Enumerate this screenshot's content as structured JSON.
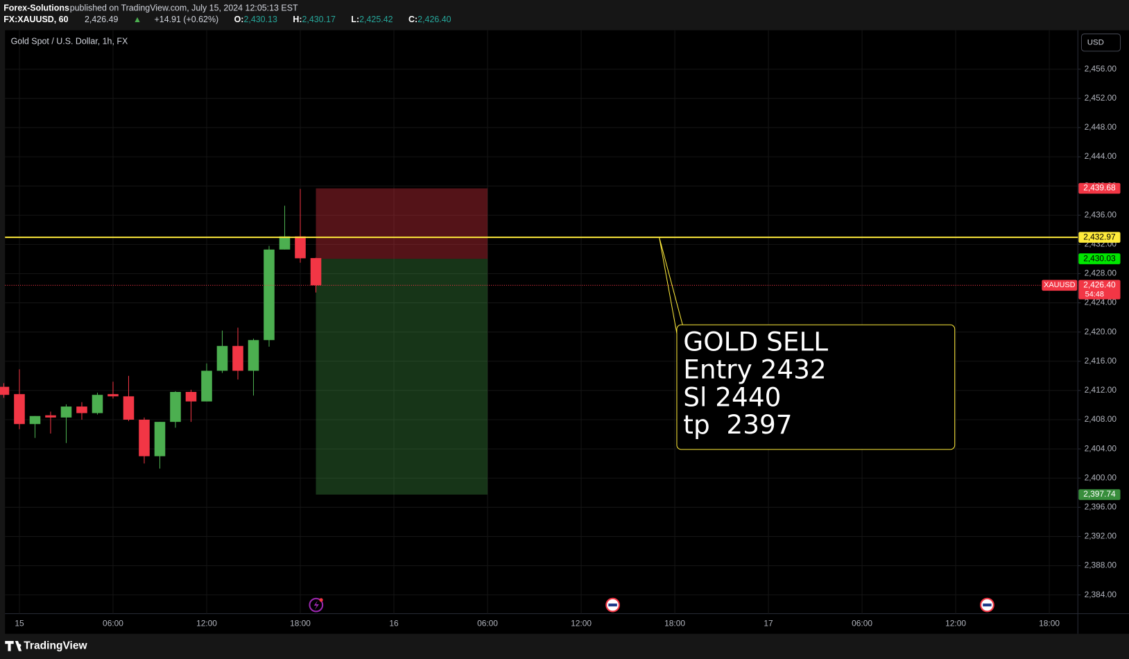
{
  "header": {
    "publisher": "Forex-Solutions",
    "published": "published on TradingView.com, July 15, 2024 12:05:13 EST",
    "symbol": "FX:XAUUSD, 60",
    "last": "2,426.49",
    "change": "+14.91 (+0.62%)",
    "o_label": "O:",
    "o": "2,430.13",
    "h_label": "H:",
    "h": "2,430.17",
    "l_label": "L:",
    "l": "2,425.42",
    "c_label": "C:",
    "c": "2,426.40"
  },
  "chart_data": {
    "type": "candlestick",
    "title": "Gold Spot / U.S. Dollar, 1h, FX",
    "currency": "USD",
    "x": [
      -1,
      0,
      1,
      2,
      3,
      4,
      5,
      6,
      7,
      8,
      9,
      10,
      11,
      12,
      13,
      14,
      15,
      16,
      17,
      18,
      19
    ],
    "open": [
      2412.5,
      2411.5,
      2407.4,
      2408.6,
      2408.3,
      2409.8,
      2408.9,
      2411.5,
      2411.2,
      2408.0,
      2403.0,
      2407.7,
      2411.8,
      2410.5,
      2414.7,
      2418.1,
      2414.7,
      2418.9,
      2431.3,
      2433.1,
      2430.13
    ],
    "high": [
      2413.0,
      2414.9,
      2408.5,
      2409.1,
      2410.1,
      2410.4,
      2411.7,
      2413.2,
      2414.0,
      2408.3,
      2407.7,
      2411.9,
      2412.1,
      2415.7,
      2420.2,
      2420.6,
      2419.1,
      2431.8,
      2437.3,
      2439.6,
      2430.17
    ],
    "low": [
      2411.0,
      2406.7,
      2405.5,
      2406.1,
      2404.8,
      2408.0,
      2408.7,
      2410.9,
      2407.8,
      2402.0,
      2401.3,
      2406.9,
      2407.7,
      2410.5,
      2414.4,
      2413.5,
      2411.3,
      2418.0,
      2431.3,
      2429.5,
      2425.42
    ],
    "close": [
      2411.4,
      2407.4,
      2408.5,
      2408.3,
      2409.8,
      2408.9,
      2411.4,
      2411.2,
      2408.0,
      2403.0,
      2407.7,
      2411.8,
      2410.5,
      2414.7,
      2418.1,
      2414.7,
      2418.9,
      2431.3,
      2433.1,
      2430.1,
      2426.4
    ],
    "up_color": "#4caf50",
    "down_color": "#f23645",
    "xlim": [
      -0.92,
      67.83
    ],
    "ylim": [
      2381.44,
      2461.33
    ],
    "xticks": [
      {
        "value": 0,
        "label": "15"
      },
      {
        "value": 6,
        "label": "06:00"
      },
      {
        "value": 12,
        "label": "12:00"
      },
      {
        "value": 18,
        "label": "18:00"
      },
      {
        "value": 24,
        "label": "16"
      },
      {
        "value": 30,
        "label": "06:00"
      },
      {
        "value": 36,
        "label": "12:00"
      },
      {
        "value": 42,
        "label": "18:00"
      },
      {
        "value": 48,
        "label": "17"
      },
      {
        "value": 54,
        "label": "06:00"
      },
      {
        "value": 60,
        "label": "12:00"
      },
      {
        "value": 66,
        "label": "18:00"
      }
    ],
    "yticks": [
      {
        "value": 2384,
        "label": "2,384.00"
      },
      {
        "value": 2388,
        "label": "2,388.00"
      },
      {
        "value": 2392,
        "label": "2,392.00"
      },
      {
        "value": 2396,
        "label": "2,396.00"
      },
      {
        "value": 2400,
        "label": "2,400.00"
      },
      {
        "value": 2404,
        "label": "2,404.00"
      },
      {
        "value": 2408,
        "label": "2,408.00"
      },
      {
        "value": 2412,
        "label": "2,412.00"
      },
      {
        "value": 2416,
        "label": "2,416.00"
      },
      {
        "value": 2420,
        "label": "2,420.00"
      },
      {
        "value": 2424,
        "label": "2,424.00"
      },
      {
        "value": 2428,
        "label": "2,428.00"
      },
      {
        "value": 2432,
        "label": "2,432.00"
      },
      {
        "value": 2436,
        "label": "2,436.00"
      },
      {
        "value": 2440,
        "label": "2,440.00"
      },
      {
        "value": 2444,
        "label": "2,444.00"
      },
      {
        "value": 2448,
        "label": "2,448.00"
      },
      {
        "value": 2452,
        "label": "2,452.00"
      },
      {
        "value": 2456,
        "label": "2,456.00"
      }
    ],
    "grid": true,
    "position": {
      "x_start": 19,
      "x_end": 30,
      "stop": 2439.68,
      "stop_label": "2,439.68",
      "entry": 2430.03,
      "entry_label": "2,430.03",
      "target": 2397.74,
      "target_label": "2,397.74"
    },
    "hline": {
      "value": 2432.97,
      "label": "2,432.97",
      "color": "#ffeb3b"
    },
    "last_price": {
      "value": 2426.4,
      "label": "2,426.40",
      "symbol": "XAUUSD",
      "countdown": "54:48"
    },
    "note": {
      "x": 41,
      "y": 2433.0,
      "lines": [
        "GOLD SELL",
        "Entry 2432",
        "Sl 2440",
        "tp  2397"
      ]
    }
  },
  "footer": {
    "brand": "TradingView"
  }
}
